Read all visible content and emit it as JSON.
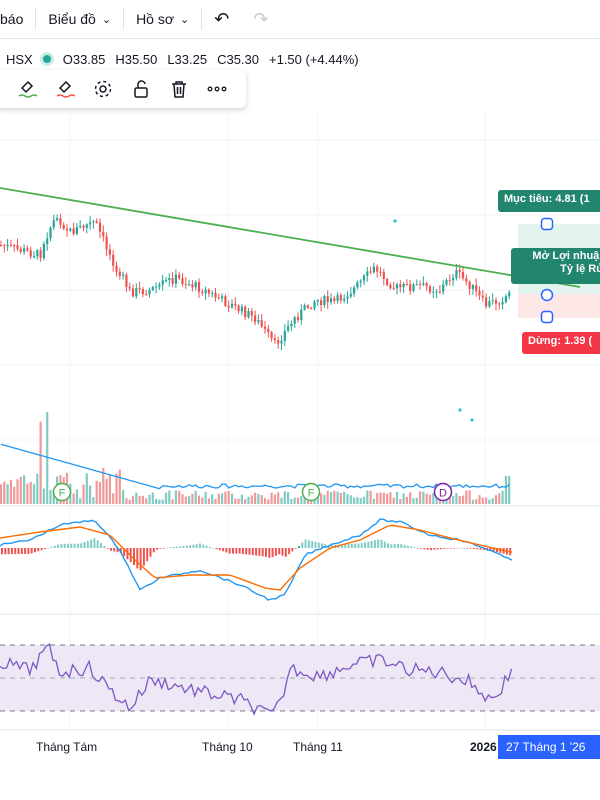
{
  "toolbar": {
    "partial_item": "báo",
    "chart_type_label": "Biểu đồ",
    "profile_label": "Hồ sơ",
    "undo_icon": "undo-icon",
    "redo_icon": "redo-icon"
  },
  "legend": {
    "exchange": "HSX",
    "open": "O33.85",
    "high": "H35.50",
    "low": "L33.25",
    "close": "C35.30",
    "change": "+1.50 (+4.44%)",
    "status_color": "#26a69a"
  },
  "drawing_toolbar": {
    "icons": [
      "brush-line-icon",
      "brush-fill-icon",
      "gear-icon",
      "unlock-icon",
      "trash-icon",
      "more-icon"
    ]
  },
  "position_tool": {
    "target_label": "Mục tiêu: 4.81 (1",
    "open_label_line1": "Mở Lợi nhuận",
    "open_label_line2": "Tỷ lệ Rủi",
    "stop_label": "Dừng: 1.39 (",
    "target_color": "#22866f",
    "stop_color": "#f23645"
  },
  "markers": [
    "F",
    "F",
    "D"
  ],
  "x_axis": {
    "labels": [
      "Tháng Tám",
      "Tháng 10",
      "Tháng 11",
      "2026"
    ],
    "crosshair_date": "27 Tháng 1 '26"
  },
  "colors": {
    "up": "#26a69a",
    "down": "#ef5350",
    "trendline": "#4caf50",
    "macd": "#2196f3",
    "signal": "#ff6d00",
    "rsi": "#7e57c2"
  }
}
